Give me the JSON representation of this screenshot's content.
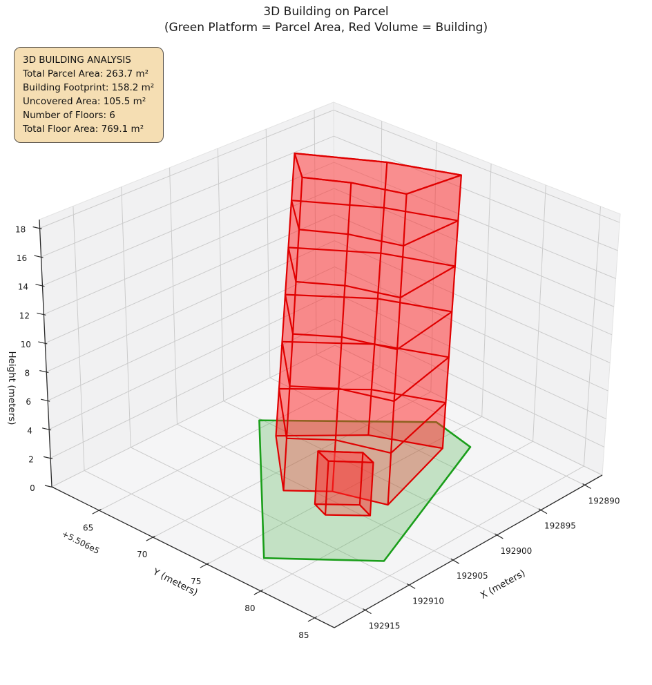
{
  "title": "3D Building on Parcel",
  "subtitle": "(Green Platform = Parcel Area, Red Volume = Building)",
  "info_box": {
    "heading": "3D BUILDING ANALYSIS",
    "lines": [
      "Total Parcel Area: 263.7 m²",
      "Building Footprint: 158.2 m²",
      "Uncovered Area: 105.5 m²",
      "Number of Floors: 6",
      "Total Floor Area: 769.1 m²"
    ],
    "bg_color": "#f5deb3"
  },
  "chart_data": {
    "type": "3d-building-extrusion",
    "title": "3D Building on Parcel",
    "subtitle": "(Green Platform = Parcel Area, Red Volume = Building)",
    "x_axis": {
      "label": "X (meters)",
      "ticks": [
        192915,
        192910,
        192905,
        192900,
        192895,
        192890
      ],
      "range": [
        192888.0,
        192918.5
      ]
    },
    "y_axis": {
      "label": "Y (meters)",
      "offset_text": "+5.506e5",
      "offset_value": 550600,
      "ticks": [
        65,
        70,
        75,
        80,
        85
      ],
      "ticks_absolute": [
        550665,
        550670,
        550675,
        550680,
        550685
      ],
      "range": [
        550660.6,
        550686.8
      ]
    },
    "z_axis": {
      "label": "Height (meters)",
      "ticks": [
        0,
        2,
        4,
        6,
        8,
        10,
        12,
        14,
        16,
        18
      ],
      "range": [
        0,
        18.6
      ]
    },
    "grid": true,
    "parcel": {
      "name": "parcel-area-platform",
      "area_m2": 263.7,
      "uncovered_area_m2": 105.5,
      "polygon_xy": [
        [
          192900.2,
          550664.2
        ],
        [
          192891.0,
          550673.2
        ],
        [
          192891.9,
          550677.3
        ],
        [
          192908.75,
          550683.4
        ],
        [
          192914.8,
          550677.2
        ]
      ],
      "fill": "rgba(80,180,80,0.30)",
      "edge_color": "#1a9e1a"
    },
    "building": {
      "name": "building-volume",
      "floors": 6,
      "floor_height_m": 3,
      "height_m": 18,
      "footprint_area_m2": 158.2,
      "total_floor_area_m2": 769.1,
      "tower_footprint_xy": [
        [
          192906.5,
          550672.0
        ],
        [
          192901.0,
          550666.5
        ],
        [
          192896.0,
          550671.0
        ],
        [
          192893.5,
          550676.0
        ],
        [
          192902.5,
          550678.5
        ],
        [
          192904.0,
          550674.5
        ]
      ],
      "annex_footprint_xy": [
        [
          192906.3,
          550674.8
        ],
        [
          192906.9,
          550676.3
        ],
        [
          192904.6,
          550678.6
        ],
        [
          192904.0,
          550677.1
        ]
      ],
      "annex_floors": 1,
      "fill": "rgba(255,40,40,0.30)",
      "top_fill": "rgba(255,90,90,0.42)",
      "edge_color": "#e00000"
    },
    "colors": {
      "pane_wall": "#f1f1f2",
      "pane_floor": "#f5f5f6",
      "grid_line": "#cbcbcb",
      "axis_line": "#2a2a2a",
      "parcel_green": "#1a9e1a",
      "building_red": "#e00000",
      "info_box_bg": "#f5deb3"
    }
  }
}
